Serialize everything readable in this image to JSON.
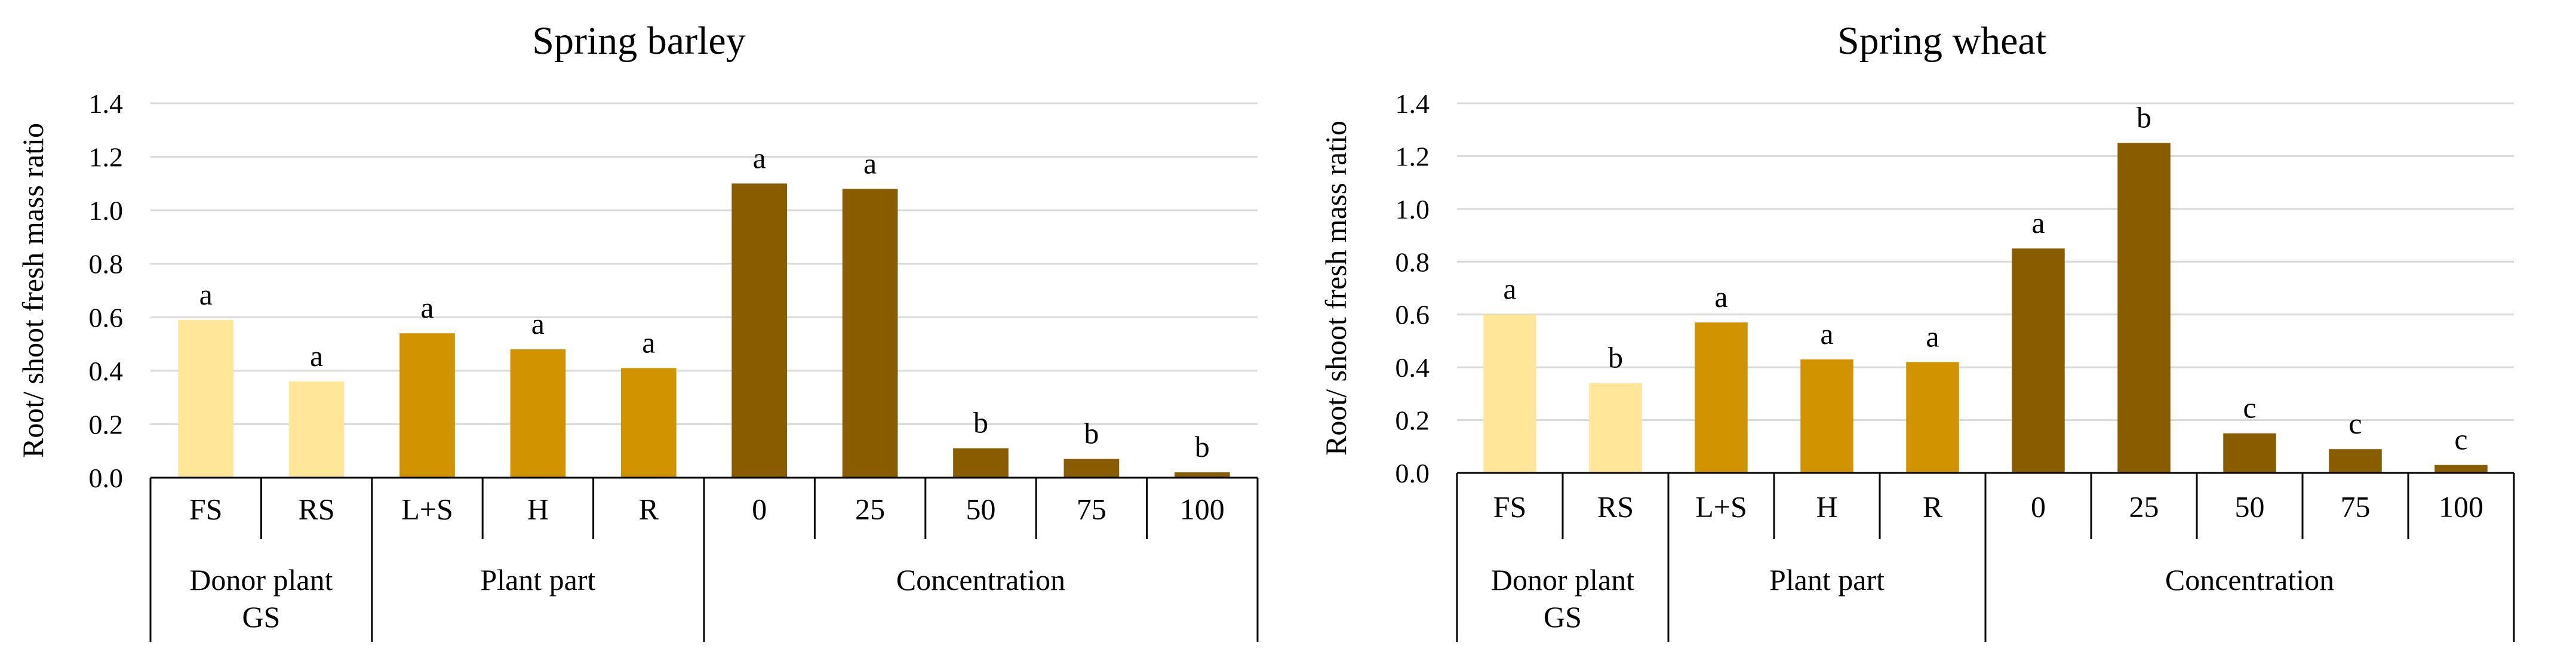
{
  "colors": {
    "donor": "#FFE699",
    "plant_part": "#D19300",
    "concentration": "#8A5C00",
    "gridline": "#D9D9D9",
    "axis": "#000000"
  },
  "chart_data": [
    {
      "type": "bar",
      "title": "Spring barley",
      "ylabel": "Root/ shoot fresh mass ratio",
      "xlabel": "",
      "ylim": [
        0,
        1.4
      ],
      "yticks": [
        "0.0",
        "0.2",
        "0.4",
        "0.6",
        "0.8",
        "1.0",
        "1.2",
        "1.4"
      ],
      "grid": true,
      "categories": [
        "FS",
        "RS",
        "L+S",
        "H",
        "R",
        "0",
        "25",
        "50",
        "75",
        "100"
      ],
      "values": [
        0.59,
        0.36,
        0.54,
        0.48,
        0.41,
        1.1,
        1.08,
        0.11,
        0.07,
        0.02
      ],
      "letters": [
        "a",
        "a",
        "a",
        "a",
        "a",
        "a",
        "a",
        "b",
        "b",
        "b"
      ],
      "bar_groups": [
        "donor",
        "donor",
        "plant_part",
        "plant_part",
        "plant_part",
        "concentration",
        "concentration",
        "concentration",
        "concentration",
        "concentration"
      ],
      "groups": [
        {
          "label_lines": [
            "Donor plant",
            "GS"
          ],
          "count": 2
        },
        {
          "label_lines": [
            "Plant part"
          ],
          "count": 3
        },
        {
          "label_lines": [
            "Concentration"
          ],
          "count": 5
        }
      ]
    },
    {
      "type": "bar",
      "title": "Spring wheat",
      "ylabel": "Root/ shoot fresh mass ratio",
      "xlabel": "",
      "ylim": [
        0,
        1.4
      ],
      "yticks": [
        "0.0",
        "0.2",
        "0.4",
        "0.6",
        "0.8",
        "1.0",
        "1.2",
        "1.4"
      ],
      "grid": true,
      "categories": [
        "FS",
        "RS",
        "L+S",
        "H",
        "R",
        "0",
        "25",
        "50",
        "75",
        "100"
      ],
      "values": [
        0.6,
        0.34,
        0.57,
        0.43,
        0.42,
        0.85,
        1.25,
        0.15,
        0.09,
        0.03
      ],
      "letters": [
        "a",
        "b",
        "a",
        "a",
        "a",
        "a",
        "b",
        "c",
        "c",
        "c"
      ],
      "bar_groups": [
        "donor",
        "donor",
        "plant_part",
        "plant_part",
        "plant_part",
        "concentration",
        "concentration",
        "concentration",
        "concentration",
        "concentration"
      ],
      "groups": [
        {
          "label_lines": [
            "Donor plant",
            "GS"
          ],
          "count": 2
        },
        {
          "label_lines": [
            "Plant part"
          ],
          "count": 3
        },
        {
          "label_lines": [
            "Concentration"
          ],
          "count": 5
        }
      ]
    }
  ]
}
